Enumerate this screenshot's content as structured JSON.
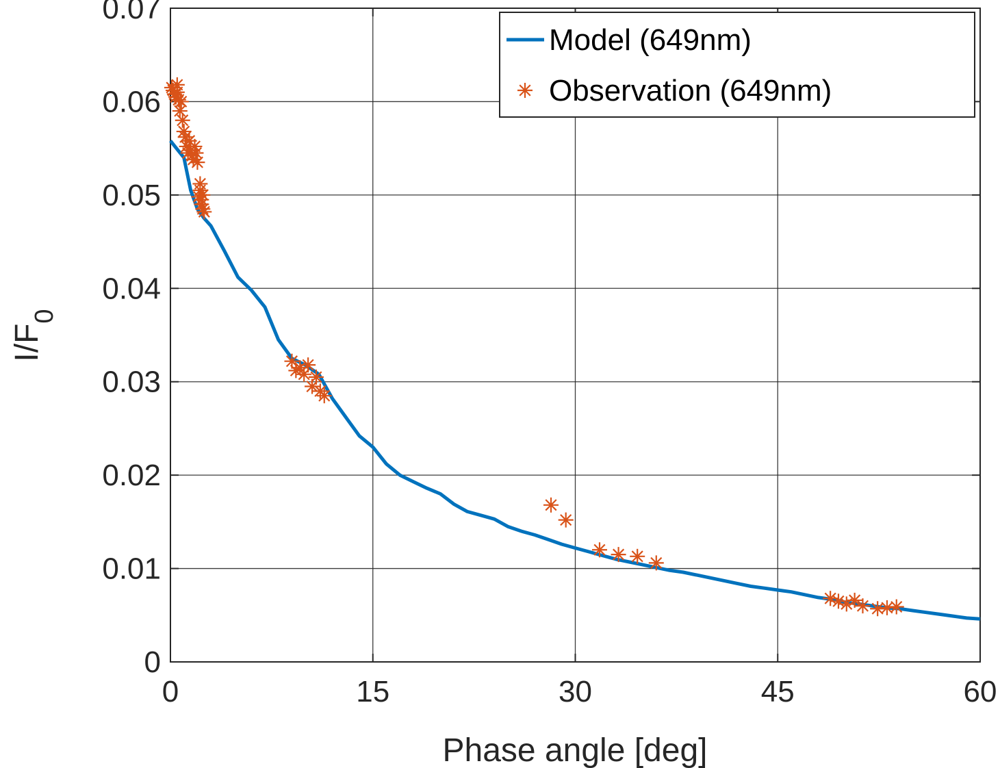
{
  "chart_data": {
    "type": "line",
    "xlabel": "Phase angle [deg]",
    "ylabel_main": "I/F",
    "ylabel_sub": "0",
    "xlim": [
      0,
      60
    ],
    "ylim": [
      0,
      0.07
    ],
    "xticks": [
      0,
      15,
      30,
      45,
      60
    ],
    "xtick_labels": [
      "0",
      "15",
      "30",
      "45",
      "60"
    ],
    "yticks": [
      0,
      0.01,
      0.02,
      0.03,
      0.04,
      0.05,
      0.06,
      0.07
    ],
    "ytick_labels": [
      "0",
      "0.01",
      "0.02",
      "0.03",
      "0.04",
      "0.05",
      "0.06",
      "0.07"
    ],
    "grid": true,
    "legend_position": "top-right",
    "colors": {
      "model": "#0072BD",
      "observation": "#D95319",
      "grid": "#262626"
    },
    "series": [
      {
        "name": "Model (649nm)",
        "kind": "line",
        "x": [
          0,
          1,
          1.5,
          2,
          2.5,
          3,
          4,
          5,
          6,
          7,
          8,
          9,
          10,
          11,
          12,
          13,
          14,
          15,
          16,
          17,
          18,
          19,
          20,
          21,
          22,
          23,
          24,
          25,
          26,
          27,
          28,
          29,
          30,
          31,
          32,
          33,
          34,
          35,
          36,
          37,
          38,
          39,
          40,
          41,
          42,
          43,
          44,
          45,
          46,
          47,
          48,
          49,
          50,
          51,
          52,
          53,
          54,
          55,
          56,
          57,
          58,
          59,
          60
        ],
        "y": [
          0.0558,
          0.054,
          0.0505,
          0.0485,
          0.0475,
          0.0467,
          0.044,
          0.0412,
          0.0398,
          0.038,
          0.0345,
          0.0325,
          0.0318,
          0.0308,
          0.0282,
          0.0262,
          0.0242,
          0.023,
          0.0212,
          0.02,
          0.0193,
          0.0186,
          0.018,
          0.0169,
          0.0161,
          0.0157,
          0.0153,
          0.0145,
          0.014,
          0.0136,
          0.0131,
          0.0126,
          0.0122,
          0.0118,
          0.0114,
          0.011,
          0.0107,
          0.0104,
          0.0101,
          0.0098,
          0.0096,
          0.0093,
          0.009,
          0.0087,
          0.0084,
          0.0081,
          0.0079,
          0.0077,
          0.0075,
          0.0072,
          0.0069,
          0.0067,
          0.0064,
          0.0062,
          0.006,
          0.0058,
          0.0057,
          0.0055,
          0.0053,
          0.0051,
          0.0049,
          0.0047,
          0.0046
        ]
      },
      {
        "name": "Observation (649nm)",
        "kind": "scatter",
        "marker": "asterisk",
        "x": [
          0.1,
          0.2,
          0.3,
          0.4,
          0.5,
          0.5,
          0.6,
          0.7,
          0.8,
          0.9,
          1.0,
          1.1,
          1.2,
          1.3,
          1.4,
          1.5,
          1.6,
          1.7,
          1.8,
          1.9,
          2.0,
          2.1,
          2.2,
          2.2,
          2.3,
          2.3,
          2.4,
          2.5,
          2.4,
          9.0,
          9.3,
          9.6,
          9.9,
          10.2,
          10.5,
          10.8,
          11.1,
          11.4,
          28.2,
          29.3,
          31.8,
          33.2,
          34.6,
          36.0,
          48.9,
          49.5,
          50.1,
          50.7,
          51.3,
          52.4,
          53.1,
          53.8
        ],
        "y": [
          0.0615,
          0.0612,
          0.0608,
          0.0605,
          0.0618,
          0.061,
          0.0602,
          0.059,
          0.06,
          0.058,
          0.0568,
          0.0562,
          0.0552,
          0.0545,
          0.0558,
          0.0548,
          0.0542,
          0.0538,
          0.0552,
          0.0545,
          0.0535,
          0.0498,
          0.0505,
          0.0512,
          0.0495,
          0.049,
          0.0485,
          0.0482,
          0.05,
          0.0322,
          0.0312,
          0.0315,
          0.0308,
          0.0318,
          0.0295,
          0.0305,
          0.029,
          0.0285,
          0.0168,
          0.0152,
          0.012,
          0.0115,
          0.0113,
          0.0106,
          0.0068,
          0.0065,
          0.0062,
          0.0066,
          0.006,
          0.0057,
          0.0058,
          0.0059
        ]
      }
    ]
  }
}
